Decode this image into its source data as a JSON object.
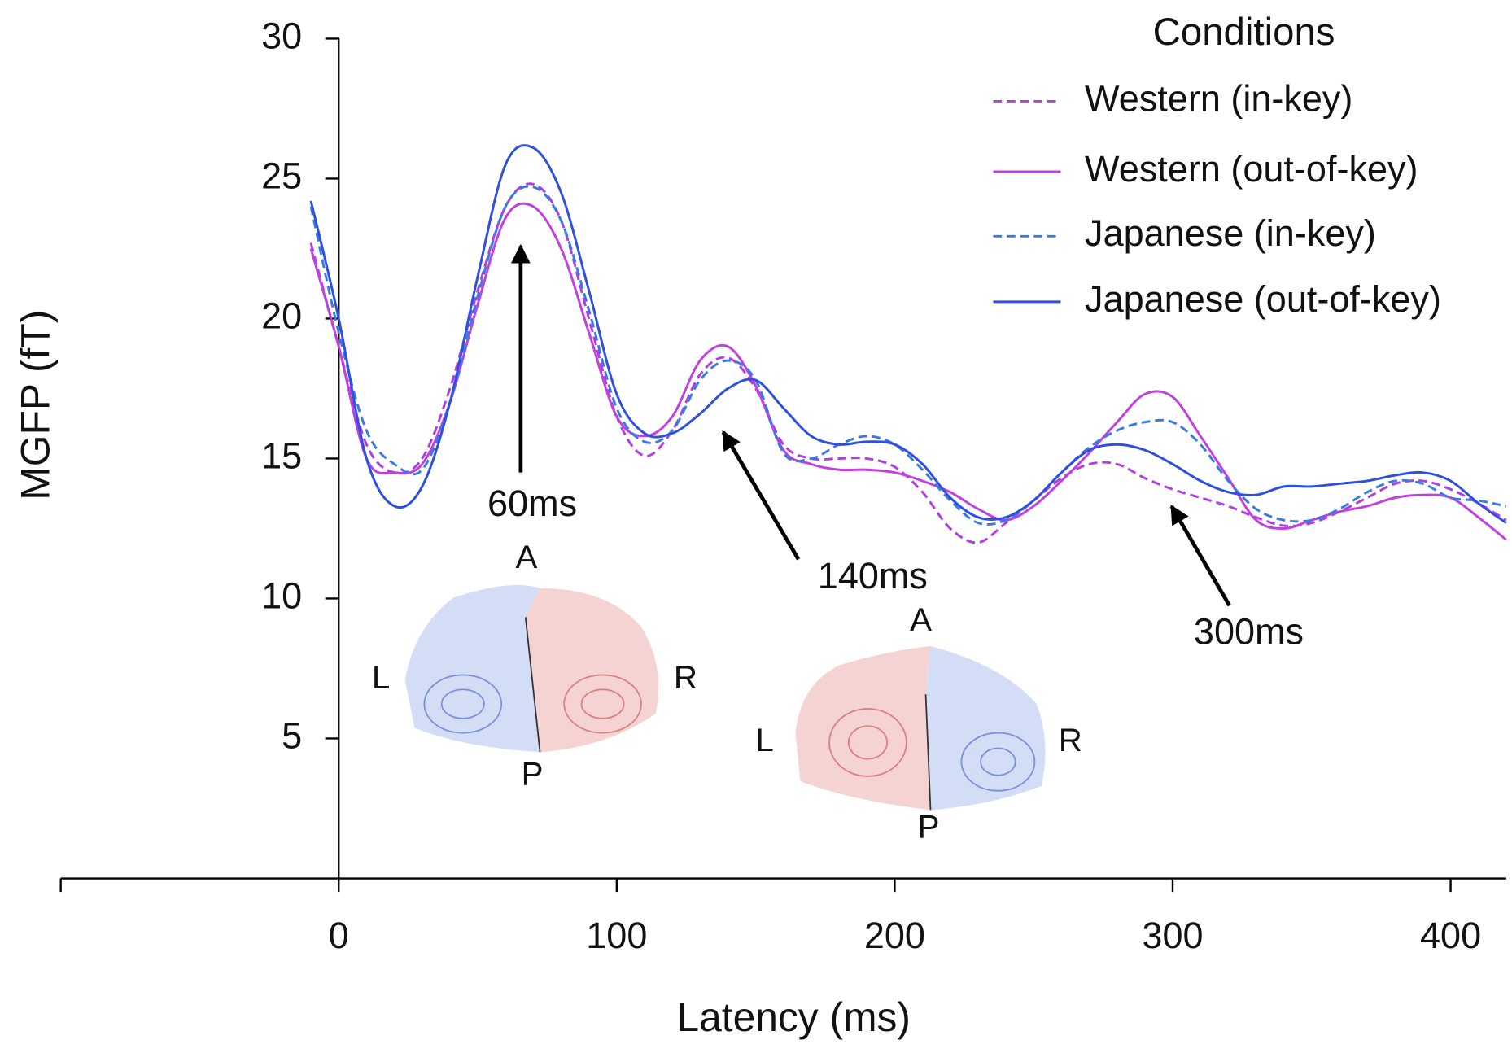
{
  "chart_data": {
    "type": "line",
    "x_label": "Latency (ms)",
    "y_label": "MGFP (fT)",
    "xlim": [
      -100,
      420
    ],
    "ylim": [
      0,
      30
    ],
    "xticks": [
      0,
      100,
      200,
      300,
      400
    ],
    "yticks": [
      5,
      10,
      15,
      20,
      25,
      30
    ],
    "legend": {
      "title": "Conditions",
      "position": "upper right"
    },
    "x": [
      -10,
      0,
      10,
      20,
      30,
      40,
      50,
      60,
      70,
      80,
      90,
      100,
      110,
      120,
      130,
      140,
      150,
      160,
      170,
      180,
      190,
      200,
      210,
      220,
      230,
      240,
      250,
      260,
      270,
      280,
      290,
      300,
      310,
      320,
      330,
      340,
      350,
      360,
      370,
      380,
      390,
      400,
      410,
      420
    ],
    "series": [
      {
        "name": "Western (in-key)",
        "color": "#b03ee0",
        "style": "dashed",
        "values": [
          22.7,
          19,
          15.5,
          14.5,
          15,
          17.5,
          21,
          24,
          24.8,
          23.5,
          20,
          16.5,
          15.1,
          16,
          18,
          18.6,
          17.5,
          15.5,
          15,
          15,
          15,
          14.7,
          13.8,
          12.5,
          12,
          12.7,
          13.5,
          14.3,
          14.8,
          14.8,
          14.3,
          13.9,
          13.6,
          13.3,
          12.9,
          12.6,
          12.7,
          13.1,
          13.6,
          14.1,
          14.2,
          13.9,
          13.4,
          12.8
        ]
      },
      {
        "name": "Western (out-of-key)",
        "color": "#c040e0",
        "style": "solid",
        "values": [
          22.5,
          19,
          15,
          14.5,
          14.8,
          17,
          20.5,
          23.6,
          24,
          22.5,
          19.5,
          16.5,
          15.8,
          16.5,
          18.5,
          19,
          17.6,
          15.3,
          14.8,
          14.6,
          14.6,
          14.5,
          14.2,
          13.8,
          13.2,
          12.8,
          13.3,
          14.2,
          15.2,
          16.3,
          17.3,
          17.2,
          15.8,
          14.3,
          12.8,
          12.5,
          12.8,
          13.1,
          13.3,
          13.6,
          13.7,
          13.6,
          12.9,
          12.1
        ]
      },
      {
        "name": "Japanese (in-key)",
        "color": "#3a7be0",
        "style": "dashed",
        "values": [
          24,
          19.5,
          16,
          14.8,
          14.6,
          17,
          20.8,
          24,
          24.7,
          23.5,
          20.3,
          16.8,
          15.6,
          16,
          17.8,
          18.5,
          17.8,
          15.2,
          15,
          15.5,
          15.8,
          15.5,
          14.6,
          13.5,
          12.7,
          12.8,
          13.5,
          14.5,
          15.4,
          16,
          16.3,
          16.3,
          15.5,
          14.2,
          13.2,
          12.8,
          12.8,
          13.2,
          13.8,
          14.2,
          14.1,
          13.6,
          13.5,
          13.3
        ]
      },
      {
        "name": "Japanese (out-of-key)",
        "color": "#2e4fe0",
        "style": "solid",
        "values": [
          24.2,
          20,
          15,
          13.3,
          14,
          17,
          21.5,
          25.5,
          26.1,
          24.5,
          21,
          17.3,
          15.9,
          15.9,
          16.6,
          17.5,
          17.8,
          16.8,
          15.8,
          15.5,
          15.6,
          15.5,
          14.8,
          13.6,
          12.9,
          12.9,
          13.5,
          14.5,
          15.3,
          15.5,
          15.3,
          14.8,
          14.2,
          13.8,
          13.7,
          14,
          14,
          14.1,
          14.2,
          14.4,
          14.5,
          14.2,
          13.4,
          12.7
        ]
      }
    ],
    "annotations": [
      {
        "text": "60ms"
      },
      {
        "text": "140ms"
      },
      {
        "text": "300ms"
      }
    ],
    "topomaps": [
      {
        "labels": [
          "A",
          "L",
          "R",
          "P"
        ]
      },
      {
        "labels": [
          "A",
          "L",
          "R",
          "P"
        ]
      }
    ]
  }
}
